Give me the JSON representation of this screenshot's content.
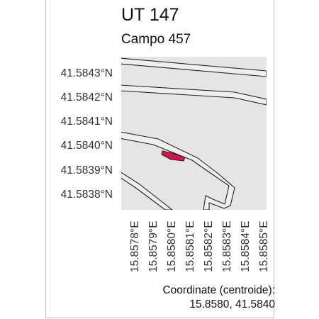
{
  "title": "UT 147",
  "subtitle": "Campo 457",
  "latitude_labels": [
    "41.5843°N",
    "41.5842°N",
    "41.5841°N",
    "41.5840°N",
    "41.5839°N",
    "41.5838°N"
  ],
  "longitude_labels": [
    "15.8578°E",
    "15.8579°E",
    "15.8580°E",
    "15.8581°E",
    "15.8582°E",
    "15.8583°E",
    "15.8584°E",
    "15.8585°E"
  ],
  "coordinates": {
    "label": "Coordinate (centroide):",
    "value": "15.8580, 41.5840"
  },
  "colors": {
    "map_background": "#e5e5e3",
    "road_fill": "#efefed",
    "road_stroke": "#222222",
    "parcel_fill": "#d6134f"
  }
}
